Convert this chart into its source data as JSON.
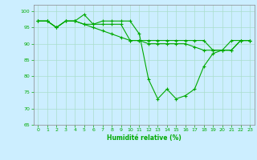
{
  "title": "",
  "xlabel": "Humidité relative (%)",
  "ylabel": "",
  "xlim": [
    -0.5,
    23.5
  ],
  "ylim": [
    65,
    102
  ],
  "yticks": [
    65,
    70,
    75,
    80,
    85,
    90,
    95,
    100
  ],
  "xticks": [
    0,
    1,
    2,
    3,
    4,
    5,
    6,
    7,
    8,
    9,
    10,
    11,
    12,
    13,
    14,
    15,
    16,
    17,
    18,
    19,
    20,
    21,
    22,
    23
  ],
  "bg_color": "#cceeff",
  "line_color": "#00aa00",
  "grid_color": "#aaddcc",
  "line1": [
    97,
    97,
    95,
    97,
    97,
    99,
    96,
    97,
    97,
    97,
    97,
    93,
    79,
    73,
    76,
    73,
    74,
    76,
    83,
    87,
    88,
    88,
    91,
    91
  ],
  "line2": [
    97,
    97,
    95,
    97,
    97,
    96,
    96,
    96,
    96,
    96,
    91,
    91,
    91,
    91,
    91,
    91,
    91,
    91,
    91,
    88,
    88,
    91,
    91,
    91
  ],
  "line3": [
    97,
    97,
    95,
    97,
    97,
    96,
    95,
    94,
    93,
    92,
    91,
    91,
    90,
    90,
    90,
    90,
    90,
    89,
    88,
    88,
    88,
    88,
    91,
    91
  ]
}
